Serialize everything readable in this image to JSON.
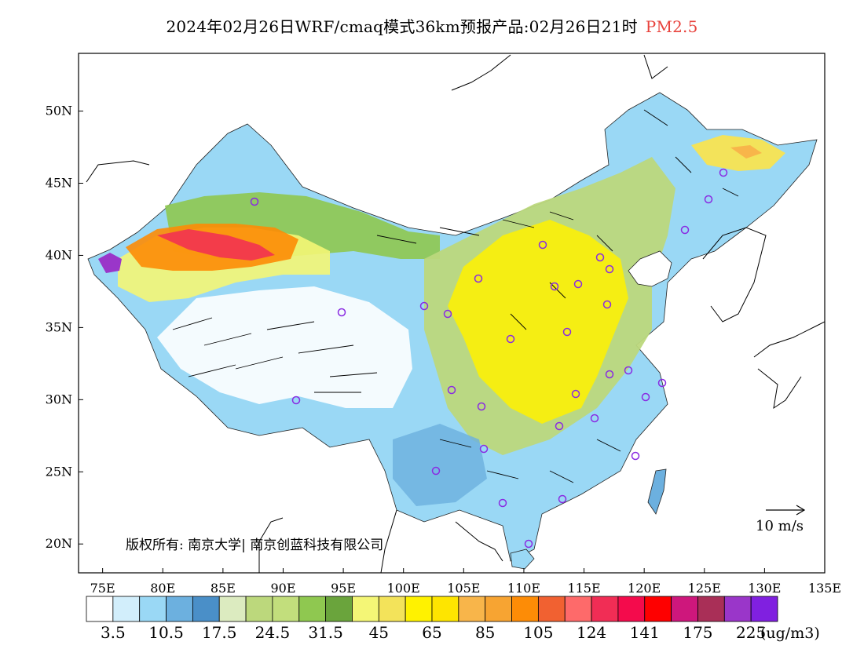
{
  "title": {
    "main": "2024年02月26日WRF/cmaq模式36km预报产品:02月26日21时",
    "variable": "PM2.5"
  },
  "map": {
    "lon_range": [
      73,
      135
    ],
    "lat_range": [
      18,
      54
    ],
    "x_ticks": [
      "75E",
      "80E",
      "85E",
      "90E",
      "95E",
      "100E",
      "105E",
      "110E",
      "115E",
      "120E",
      "125E",
      "130E",
      "135E"
    ],
    "y_ticks": [
      "20N",
      "25N",
      "30N",
      "35N",
      "40N",
      "45N",
      "50N"
    ],
    "copyright": "版权所有: 南京大学| 南京创蓝科技有限公司",
    "wind_scale_label": "10 m/s"
  },
  "colorbar": {
    "colors": [
      "#ffffff",
      "#d2eefb",
      "#9ad8f5",
      "#6cb0df",
      "#4a8fc8",
      "#dcebc0",
      "#bcd87c",
      "#c2de7c",
      "#8fc850",
      "#6aa43c",
      "#f4f676",
      "#f3e35a",
      "#fff200",
      "#fee500",
      "#f8b54a",
      "#f7a432",
      "#fd8c06",
      "#f16131",
      "#fe6a6a",
      "#f12d55",
      "#f40b4c",
      "#fe0000",
      "#ce177c",
      "#a92f57",
      "#9a36c9",
      "#8020e0"
    ],
    "labels": [
      "3.5",
      "10.5",
      "17.5",
      "24.5",
      "31.5",
      "45",
      "65",
      "85",
      "105",
      "124",
      "141",
      "175",
      "225"
    ],
    "unit": "(ug/m3)"
  }
}
